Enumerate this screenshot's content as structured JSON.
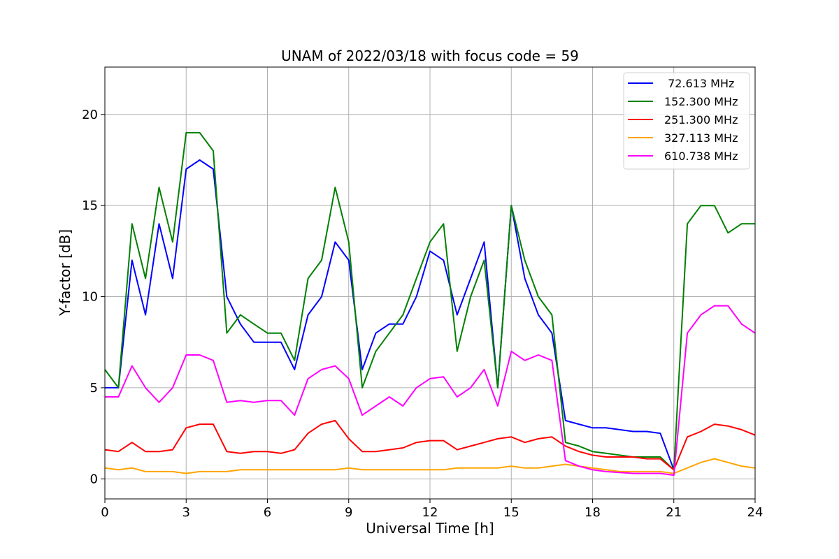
{
  "chart_data": {
    "type": "line",
    "title": "UNAM of 2022/03/18 with focus code = 59",
    "xlabel": "Universal Time [h]",
    "ylabel": "Y-factor [dB]",
    "xlim": [
      0,
      24
    ],
    "ylim": [
      -1.1,
      22.6
    ],
    "xticks": [
      0,
      3,
      6,
      9,
      12,
      15,
      18,
      21,
      24
    ],
    "yticks": [
      0,
      5,
      10,
      15,
      20
    ],
    "grid": true,
    "legend_position": "upper right",
    "x": [
      0,
      0.5,
      1,
      1.5,
      2,
      2.5,
      3,
      3.5,
      4,
      4.5,
      5,
      5.5,
      6,
      6.5,
      7,
      7.5,
      8,
      8.5,
      9,
      9.5,
      10,
      10.5,
      11,
      11.5,
      12,
      12.5,
      13,
      13.5,
      14,
      14.5,
      15,
      15.5,
      16,
      16.5,
      17,
      17.5,
      18,
      18.5,
      19,
      19.5,
      20,
      20.5,
      21,
      21.5,
      22,
      22.5,
      23,
      23.5,
      24
    ],
    "series": [
      {
        "name": " 72.613 MHz",
        "color": "#0000ff",
        "values": [
          5,
          5,
          12,
          9,
          14,
          11,
          17,
          17.5,
          17,
          10,
          8.5,
          7.5,
          7.5,
          7.5,
          6,
          9,
          10,
          13,
          12,
          6,
          8,
          8.5,
          8.5,
          10,
          12.5,
          12,
          9,
          11,
          13,
          5,
          15,
          11,
          9,
          8,
          3.2,
          3,
          2.8,
          2.8,
          2.7,
          2.6,
          2.6,
          2.5,
          0.5,
          null,
          null,
          null,
          null,
          null,
          null
        ]
      },
      {
        "name": "152.300 MHz",
        "color": "#008000",
        "values": [
          6,
          5,
          14,
          11,
          16,
          13,
          19,
          19,
          18,
          8,
          9,
          8.5,
          8,
          8,
          6.5,
          11,
          12,
          16,
          13,
          5,
          7,
          8,
          9,
          11,
          13,
          14,
          7,
          10,
          12,
          5,
          15,
          12,
          10,
          9,
          2,
          1.8,
          1.5,
          1.4,
          1.3,
          1.2,
          1.2,
          1.2,
          0.5,
          14,
          15,
          15,
          13.5,
          14,
          14
        ]
      },
      {
        "name": "251.300 MHz",
        "color": "#ff0000",
        "values": [
          1.6,
          1.5,
          2,
          1.5,
          1.5,
          1.6,
          2.8,
          3,
          3,
          1.5,
          1.4,
          1.5,
          1.5,
          1.4,
          1.6,
          2.5,
          3,
          3.2,
          2.2,
          1.5,
          1.5,
          1.6,
          1.7,
          2,
          2.1,
          2.1,
          1.6,
          1.8,
          2,
          2.2,
          2.3,
          2,
          2.2,
          2.3,
          1.8,
          1.5,
          1.3,
          1.2,
          1.2,
          1.2,
          1.1,
          1.1,
          0.5,
          2.3,
          2.6,
          3,
          2.9,
          2.7,
          2.4
        ]
      },
      {
        "name": "327.113 MHz",
        "color": "#ffa500",
        "values": [
          0.6,
          0.5,
          0.6,
          0.4,
          0.4,
          0.4,
          0.3,
          0.4,
          0.4,
          0.4,
          0.5,
          0.5,
          0.5,
          0.5,
          0.5,
          0.5,
          0.5,
          0.5,
          0.6,
          0.5,
          0.5,
          0.5,
          0.5,
          0.5,
          0.5,
          0.5,
          0.6,
          0.6,
          0.6,
          0.6,
          0.7,
          0.6,
          0.6,
          0.7,
          0.8,
          0.7,
          0.6,
          0.5,
          0.4,
          0.4,
          0.4,
          0.4,
          0.3,
          0.6,
          0.9,
          1.1,
          0.9,
          0.7,
          0.6
        ]
      },
      {
        "name": "610.738 MHz",
        "color": "#ff00ff",
        "values": [
          4.5,
          4.5,
          6.2,
          5,
          4.2,
          5,
          6.8,
          6.8,
          6.5,
          4.2,
          4.3,
          4.2,
          4.3,
          4.3,
          3.5,
          5.5,
          6,
          6.2,
          5.5,
          3.5,
          4,
          4.5,
          4,
          5,
          5.5,
          5.6,
          4.5,
          5,
          6,
          4,
          7,
          6.5,
          6.8,
          6.5,
          1,
          0.7,
          0.5,
          0.4,
          0.35,
          0.3,
          0.3,
          0.3,
          0.2,
          8,
          9,
          9.5,
          9.5,
          8.5,
          8
        ]
      }
    ]
  }
}
